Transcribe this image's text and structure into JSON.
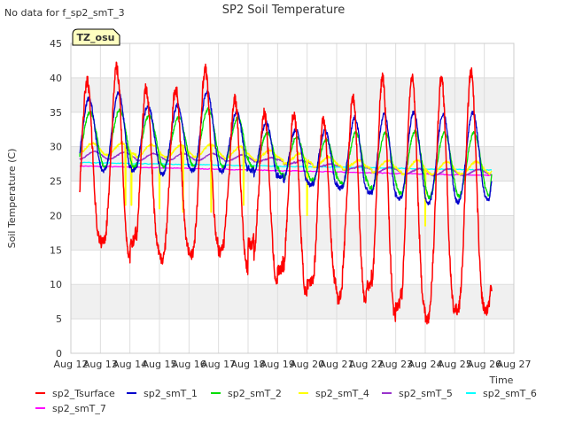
{
  "chart_data": {
    "type": "line",
    "title": "SP2 Soil Temperature",
    "top_left_note": "No data for f_sp2_smT_3",
    "badge": "TZ_osu",
    "xlabel": "Time",
    "ylabel": "Soil Temperature (C)",
    "ylim": [
      0,
      45
    ],
    "yticks": [
      0,
      5,
      10,
      15,
      20,
      25,
      30,
      35,
      40,
      45
    ],
    "x_start_day": 12,
    "x_end_day": 27,
    "xticks": [
      "Aug 12",
      "Aug 13",
      "Aug 14",
      "Aug 15",
      "Aug 16",
      "Aug 17",
      "Aug 18",
      "Aug 19",
      "Aug 20",
      "Aug 21",
      "Aug 22",
      "Aug 23",
      "Aug 24",
      "Aug 25",
      "Aug 26",
      "Aug 27"
    ],
    "data_start_day": 12.3,
    "data_end_day": 26.25,
    "colors": {
      "sp2_Tsurface": "#ff0000",
      "sp2_smT_1": "#0000cc",
      "sp2_smT_2": "#00dd00",
      "sp2_smT_4": "#ffff00",
      "sp2_smT_5": "#9933cc",
      "sp2_smT_6": "#00ffff",
      "sp2_smT_7": "#ff00ff"
    },
    "series": [
      {
        "name": "sp2_Tsurface",
        "daily_max": [
          39.5,
          41.5,
          38.5,
          38.5,
          41.2,
          37.0,
          35.0,
          34.8,
          33.8,
          37.3,
          40.0,
          40.2,
          40.0,
          40.8
        ],
        "daily_min": [
          16.2,
          13.8,
          14.5,
          14.8,
          15.8,
          12.0,
          10.0,
          8.0,
          9.8,
          7.0,
          5.0,
          6.3,
          6.0,
          6.5
        ],
        "end_value": 9.0
      },
      {
        "name": "sp2_smT_1",
        "daily_max": [
          37.0,
          37.8,
          36.0,
          36.0,
          38.0,
          35.0,
          33.5,
          32.5,
          32.3,
          34.2,
          34.7,
          35.0,
          34.7,
          35.0
        ],
        "daily_min": [
          26.5,
          26.0,
          26.5,
          26.3,
          26.5,
          25.5,
          24.5,
          24.0,
          23.3,
          22.5,
          21.8,
          22.0,
          22.3,
          22.3
        ],
        "end_value": 25.0
      },
      {
        "name": "sp2_smT_2",
        "daily_max": [
          35.0,
          35.3,
          34.5,
          34.3,
          35.5,
          34.2,
          32.0,
          31.5,
          31.0,
          32.0,
          32.0,
          32.2,
          32.0,
          32.0
        ],
        "daily_min": [
          27.0,
          27.0,
          27.2,
          27.0,
          27.0,
          26.0,
          25.2,
          24.7,
          24.0,
          23.2,
          22.6,
          22.8,
          23.0,
          23.0
        ],
        "end_value": 26.0
      },
      {
        "name": "sp2_smT_4",
        "daily_max": [
          30.5,
          30.5,
          30.3,
          30.2,
          30.3,
          30.0,
          29.5,
          29.0,
          28.5,
          28.0,
          28.0,
          28.0,
          27.8,
          27.8
        ],
        "daily_min": [
          28.8,
          28.5,
          28.5,
          28.5,
          28.3,
          28.0,
          27.5,
          27.0,
          26.7,
          26.3,
          26.0,
          26.0,
          26.0,
          26.0
        ],
        "dips": [
          [
            13.85,
            21.5
          ],
          [
            14.05,
            21.5
          ],
          [
            15.0,
            21.0
          ],
          [
            15.8,
            20.5
          ],
          [
            16.75,
            20.5
          ],
          [
            17.85,
            21.5
          ],
          [
            20.0,
            20.0
          ],
          [
            24.0,
            18.5
          ]
        ],
        "end_value": 26.5
      },
      {
        "name": "sp2_smT_5",
        "daily_max": [
          29.3,
          29.2,
          29.0,
          29.0,
          29.0,
          28.8,
          28.4,
          28.0,
          27.5,
          27.2,
          27.0,
          26.8,
          26.8,
          26.7
        ],
        "daily_min": [
          28.2,
          28.0,
          28.0,
          28.0,
          27.9,
          27.8,
          27.4,
          27.0,
          26.6,
          26.2,
          26.0,
          25.8,
          25.8,
          25.7
        ],
        "end_value": 26.0
      },
      {
        "name": "sp2_smT_6",
        "start": 27.7,
        "end": 26.6
      },
      {
        "name": "sp2_smT_7",
        "start": 27.2,
        "end": 25.8
      }
    ],
    "legend_position": "bottom",
    "legend": [
      "sp2_Tsurface",
      "sp2_smT_1",
      "sp2_smT_2",
      "sp2_smT_4",
      "sp2_smT_5",
      "sp2_smT_6",
      "sp2_smT_7"
    ]
  }
}
